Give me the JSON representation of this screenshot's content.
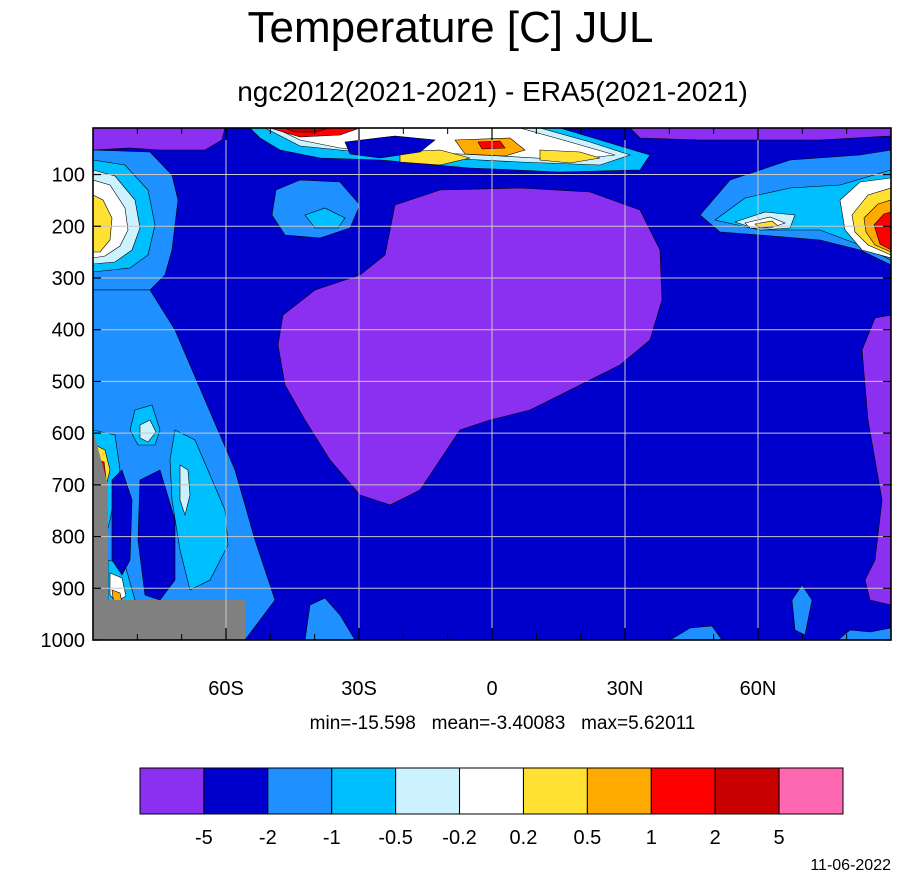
{
  "chart_data": {
    "type": "contour",
    "title": "Temperature [C] JUL",
    "subtitle": "ngc2012(2021-2021) - ERA5(2021-2021)",
    "x_ticks": [
      {
        "value": -60,
        "label": "60S"
      },
      {
        "value": -30,
        "label": "30S"
      },
      {
        "value": 0,
        "label": "0"
      },
      {
        "value": 30,
        "label": "30N"
      },
      {
        "value": 60,
        "label": "60N"
      }
    ],
    "xlim": [
      -90,
      90
    ],
    "y_ticks": [
      100,
      200,
      300,
      400,
      500,
      600,
      700,
      800,
      900,
      1000
    ],
    "ylim": [
      10,
      1000
    ],
    "y_reversed": true,
    "grid": true,
    "contour_levels": [
      "-5",
      "-2",
      "-1",
      "-0.5",
      "-0.2",
      "0.2",
      "0.5",
      "1",
      "2",
      "5"
    ],
    "colors": [
      "#8b2ff0",
      "#0000cd",
      "#1e90ff",
      "#00bfff",
      "#ccf2ff",
      "#ffffff",
      "#ffe033",
      "#ffaa00",
      "#ff0000",
      "#c80000",
      "#ff69b4"
    ],
    "missing_color": "#808080",
    "stats": {
      "min": "-15.598",
      "mean": "-3.40083",
      "max": "5.62011"
    },
    "stats_text": "min=-15.598   mean=-3.40083   max=5.62011"
  },
  "footer": {
    "date": "11-06-2022"
  }
}
